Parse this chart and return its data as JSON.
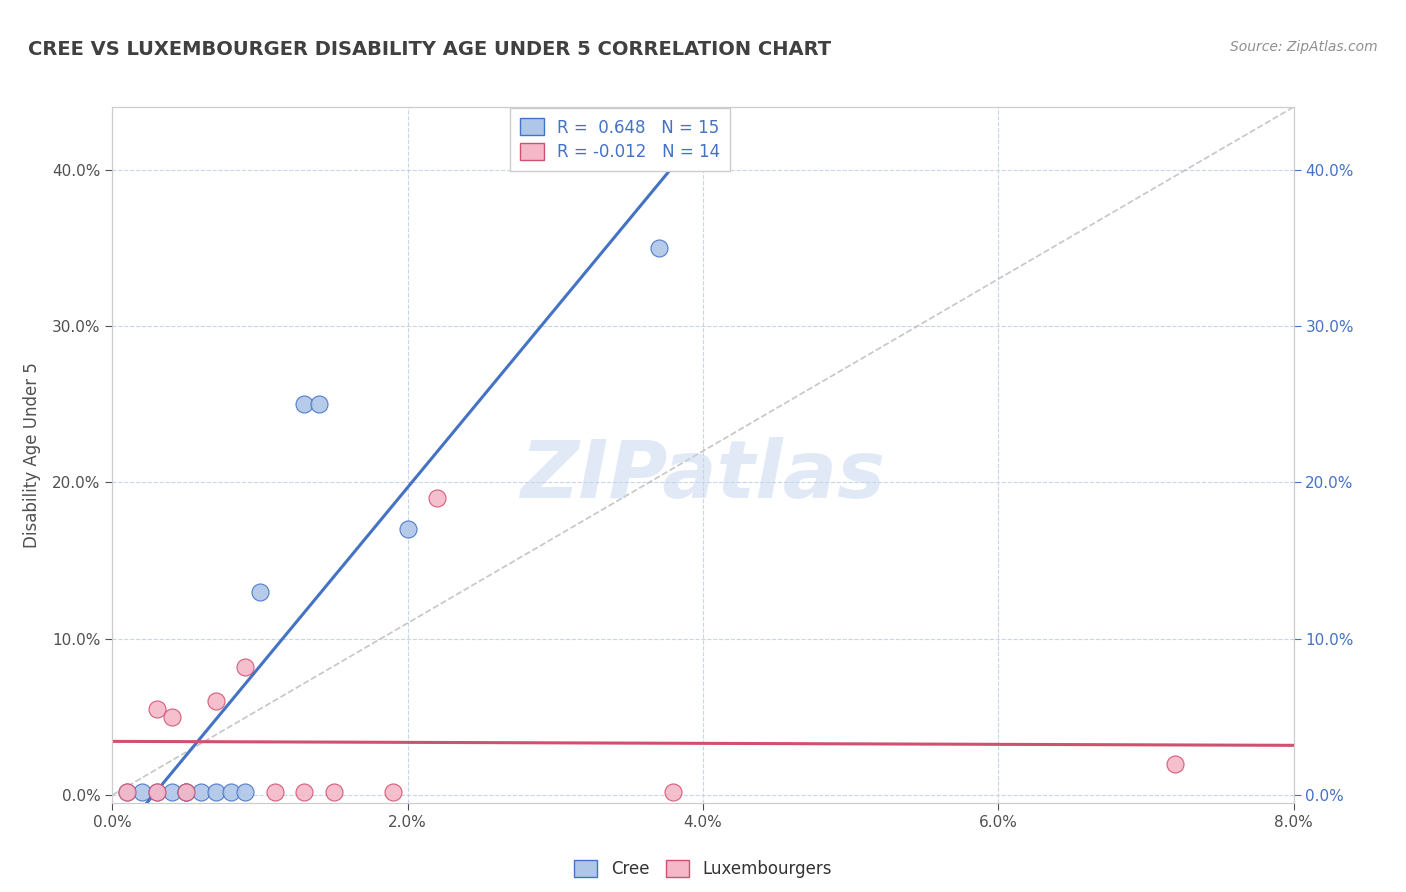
{
  "title": "CREE VS LUXEMBOURGER DISABILITY AGE UNDER 5 CORRELATION CHART",
  "source_text": "Source: ZipAtlas.com",
  "ylabel": "Disability Age Under 5",
  "xlim": [
    0.0,
    0.08
  ],
  "ylim": [
    -0.005,
    0.44
  ],
  "xtick_values": [
    0.0,
    0.02,
    0.04,
    0.06,
    0.08
  ],
  "ytick_values": [
    0.0,
    0.1,
    0.2,
    0.3,
    0.4
  ],
  "cree_scatter_x": [
    0.001,
    0.002,
    0.003,
    0.004,
    0.005,
    0.005,
    0.006,
    0.007,
    0.008,
    0.009,
    0.01,
    0.013,
    0.014,
    0.02,
    0.037
  ],
  "cree_scatter_y": [
    0.002,
    0.002,
    0.002,
    0.002,
    0.002,
    0.002,
    0.002,
    0.002,
    0.002,
    0.002,
    0.13,
    0.25,
    0.25,
    0.17,
    0.35
  ],
  "lux_scatter_x": [
    0.001,
    0.003,
    0.003,
    0.004,
    0.005,
    0.007,
    0.009,
    0.011,
    0.013,
    0.015,
    0.019,
    0.022,
    0.038,
    0.072
  ],
  "lux_scatter_y": [
    0.002,
    0.002,
    0.055,
    0.05,
    0.002,
    0.06,
    0.082,
    0.002,
    0.002,
    0.002,
    0.002,
    0.19,
    0.002,
    0.02
  ],
  "cree_color": "#aec6e8",
  "lux_color": "#f4b8c8",
  "cree_line_color": "#4472c4",
  "lux_line_color": "#d05070",
  "cree_R": 0.648,
  "cree_N": 15,
  "lux_R": -0.012,
  "lux_N": 14,
  "diagonal_color": "#b8b8b8",
  "watermark_text": "ZIPatlas",
  "legend_labels": [
    "Cree",
    "Luxembourgers"
  ],
  "background_color": "#ffffff",
  "grid_color": "#c8d4e8",
  "title_color": "#404040",
  "source_color": "#909090",
  "left_tick_color": "#505050",
  "right_tick_color": "#4472c4"
}
